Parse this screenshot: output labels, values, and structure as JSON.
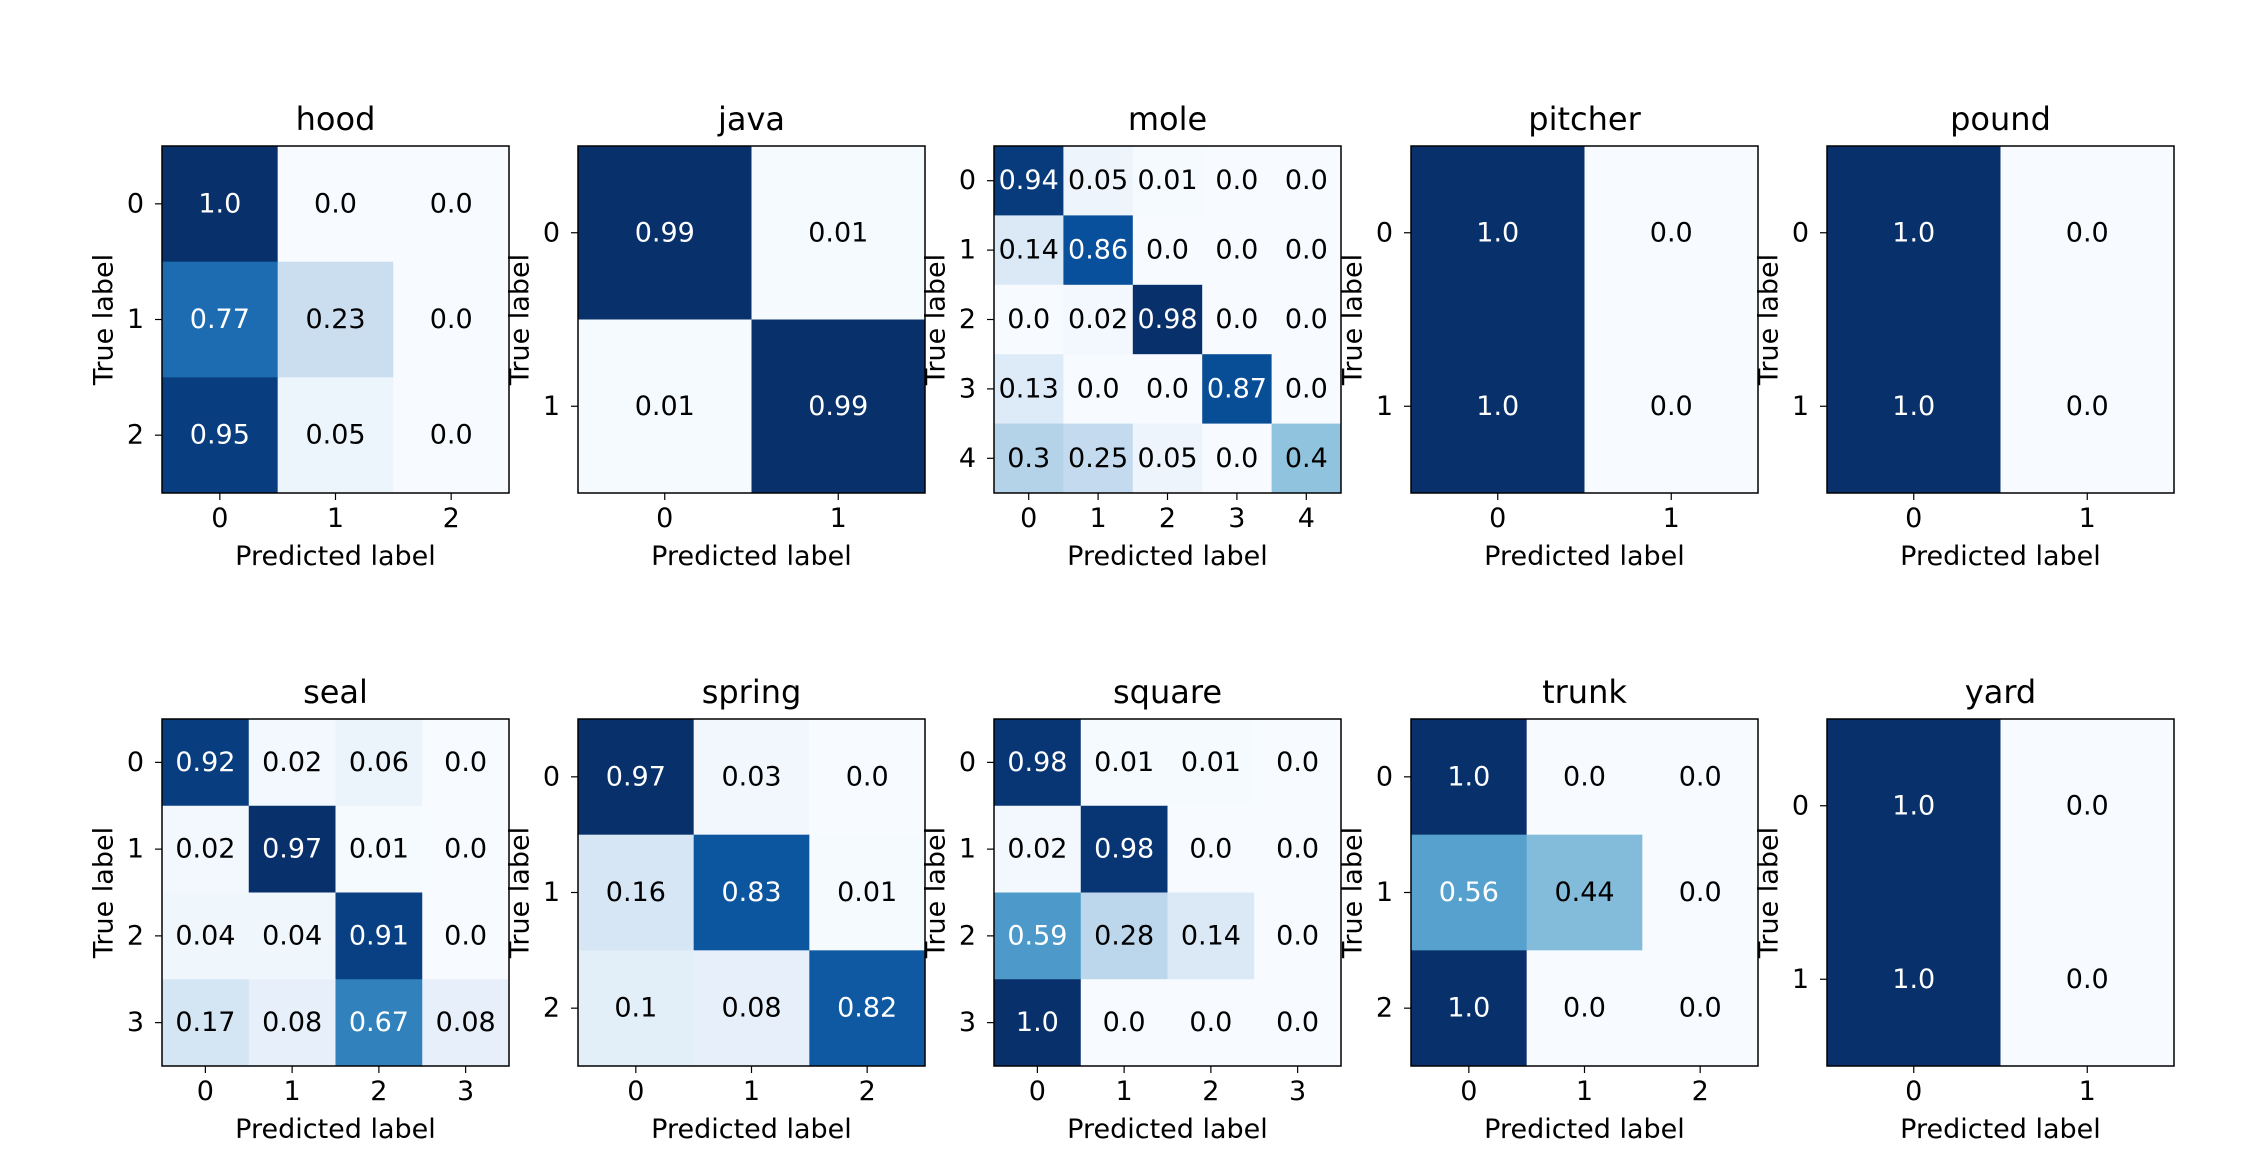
{
  "chart_data": [
    {
      "type": "heatmap",
      "title": "hood",
      "xlabel": "Predicted label",
      "ylabel": "True label",
      "x_ticks": [
        "0",
        "1",
        "2"
      ],
      "y_ticks": [
        "0",
        "1",
        "2"
      ],
      "cells": [
        [
          "1.0",
          "0.0",
          "0.0"
        ],
        [
          "0.77",
          "0.23",
          "0.0"
        ],
        [
          "0.95",
          "0.05",
          "0.0"
        ]
      ]
    },
    {
      "type": "heatmap",
      "title": "java",
      "xlabel": "Predicted label",
      "ylabel": "True label",
      "x_ticks": [
        "0",
        "1"
      ],
      "y_ticks": [
        "0",
        "1"
      ],
      "cells": [
        [
          "0.99",
          "0.01"
        ],
        [
          "0.01",
          "0.99"
        ]
      ]
    },
    {
      "type": "heatmap",
      "title": "mole",
      "xlabel": "Predicted label",
      "ylabel": "True label",
      "x_ticks": [
        "0",
        "1",
        "2",
        "3",
        "4"
      ],
      "y_ticks": [
        "0",
        "1",
        "2",
        "3",
        "4"
      ],
      "cells": [
        [
          "0.94",
          "0.05",
          "0.01",
          "0.0",
          "0.0"
        ],
        [
          "0.14",
          "0.86",
          "0.0",
          "0.0",
          "0.0"
        ],
        [
          "0.0",
          "0.02",
          "0.98",
          "0.0",
          "0.0"
        ],
        [
          "0.13",
          "0.0",
          "0.0",
          "0.87",
          "0.0"
        ],
        [
          "0.3",
          "0.25",
          "0.05",
          "0.0",
          "0.4"
        ]
      ]
    },
    {
      "type": "heatmap",
      "title": "pitcher",
      "xlabel": "Predicted label",
      "ylabel": "True label",
      "x_ticks": [
        "0",
        "1"
      ],
      "y_ticks": [
        "0",
        "1"
      ],
      "cells": [
        [
          "1.0",
          "0.0"
        ],
        [
          "1.0",
          "0.0"
        ]
      ]
    },
    {
      "type": "heatmap",
      "title": "pound",
      "xlabel": "Predicted label",
      "ylabel": "True label",
      "x_ticks": [
        "0",
        "1"
      ],
      "y_ticks": [
        "0",
        "1"
      ],
      "cells": [
        [
          "1.0",
          "0.0"
        ],
        [
          "1.0",
          "0.0"
        ]
      ]
    },
    {
      "type": "heatmap",
      "title": "seal",
      "xlabel": "Predicted label",
      "ylabel": "True label",
      "x_ticks": [
        "0",
        "1",
        "2",
        "3"
      ],
      "y_ticks": [
        "0",
        "1",
        "2",
        "3"
      ],
      "cells": [
        [
          "0.92",
          "0.02",
          "0.06",
          "0.0"
        ],
        [
          "0.02",
          "0.97",
          "0.01",
          "0.0"
        ],
        [
          "0.04",
          "0.04",
          "0.91",
          "0.0"
        ],
        [
          "0.17",
          "0.08",
          "0.67",
          "0.08"
        ]
      ]
    },
    {
      "type": "heatmap",
      "title": "spring",
      "xlabel": "Predicted label",
      "ylabel": "True label",
      "x_ticks": [
        "0",
        "1",
        "2"
      ],
      "y_ticks": [
        "0",
        "1",
        "2"
      ],
      "cells": [
        [
          "0.97",
          "0.03",
          "0.0"
        ],
        [
          "0.16",
          "0.83",
          "0.01"
        ],
        [
          "0.1",
          "0.08",
          "0.82"
        ]
      ]
    },
    {
      "type": "heatmap",
      "title": "square",
      "xlabel": "Predicted label",
      "ylabel": "True label",
      "x_ticks": [
        "0",
        "1",
        "2",
        "3"
      ],
      "y_ticks": [
        "0",
        "1",
        "2",
        "3"
      ],
      "cells": [
        [
          "0.98",
          "0.01",
          "0.01",
          "0.0"
        ],
        [
          "0.02",
          "0.98",
          "0.0",
          "0.0"
        ],
        [
          "0.59",
          "0.28",
          "0.14",
          "0.0"
        ],
        [
          "1.0",
          "0.0",
          "0.0",
          "0.0"
        ]
      ]
    },
    {
      "type": "heatmap",
      "title": "trunk",
      "xlabel": "Predicted label",
      "ylabel": "True label",
      "x_ticks": [
        "0",
        "1",
        "2"
      ],
      "y_ticks": [
        "0",
        "1",
        "2"
      ],
      "cells": [
        [
          "1.0",
          "0.0",
          "0.0"
        ],
        [
          "0.56",
          "0.44",
          "0.0"
        ],
        [
          "1.0",
          "0.0",
          "0.0"
        ]
      ]
    },
    {
      "type": "heatmap",
      "title": "yard",
      "xlabel": "Predicted label",
      "ylabel": "True label",
      "x_ticks": [
        "0",
        "1"
      ],
      "y_ticks": [
        "0",
        "1"
      ],
      "cells": [
        [
          "1.0",
          "0.0"
        ],
        [
          "1.0",
          "0.0"
        ]
      ]
    }
  ],
  "colormap": {
    "name": "Blues",
    "low": "#f7fbff",
    "high": "#08306b"
  }
}
